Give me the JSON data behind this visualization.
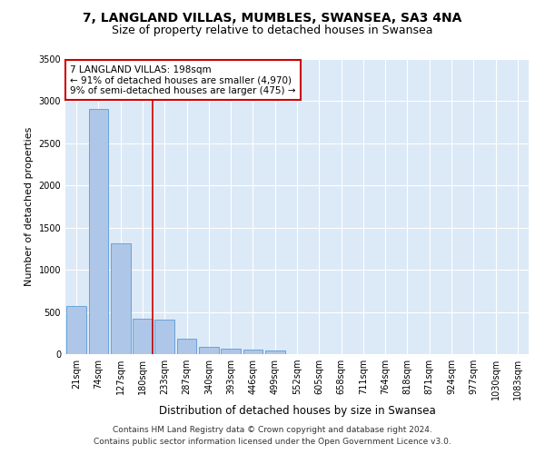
{
  "title": "7, LANGLAND VILLAS, MUMBLES, SWANSEA, SA3 4NA",
  "subtitle": "Size of property relative to detached houses in Swansea",
  "xlabel": "Distribution of detached houses by size in Swansea",
  "ylabel": "Number of detached properties",
  "footer_line1": "Contains HM Land Registry data © Crown copyright and database right 2024.",
  "footer_line2": "Contains public sector information licensed under the Open Government Licence v3.0.",
  "categories": [
    "21sqm",
    "74sqm",
    "127sqm",
    "180sqm",
    "233sqm",
    "287sqm",
    "340sqm",
    "393sqm",
    "446sqm",
    "499sqm",
    "552sqm",
    "605sqm",
    "658sqm",
    "711sqm",
    "764sqm",
    "818sqm",
    "871sqm",
    "924sqm",
    "977sqm",
    "1030sqm",
    "1083sqm"
  ],
  "values": [
    570,
    2910,
    1310,
    420,
    410,
    185,
    90,
    60,
    50,
    40,
    0,
    0,
    0,
    0,
    0,
    0,
    0,
    0,
    0,
    0,
    0
  ],
  "bar_color": "#aec6e8",
  "bar_edge_color": "#5b9bd5",
  "highlight_index": 3,
  "highlight_line_color": "#cc0000",
  "annotation_text": "7 LANGLAND VILLAS: 198sqm\n← 91% of detached houses are smaller (4,970)\n9% of semi-detached houses are larger (475) →",
  "annotation_box_color": "#ffffff",
  "annotation_box_edge_color": "#cc0000",
  "ylim": [
    0,
    3500
  ],
  "yticks": [
    0,
    500,
    1000,
    1500,
    2000,
    2500,
    3000,
    3500
  ],
  "bg_color": "#dce9f7",
  "grid_color": "#ffffff",
  "title_fontsize": 10,
  "subtitle_fontsize": 9,
  "axis_label_fontsize": 8,
  "tick_fontsize": 7,
  "annotation_fontsize": 7.5,
  "footer_fontsize": 6.5
}
